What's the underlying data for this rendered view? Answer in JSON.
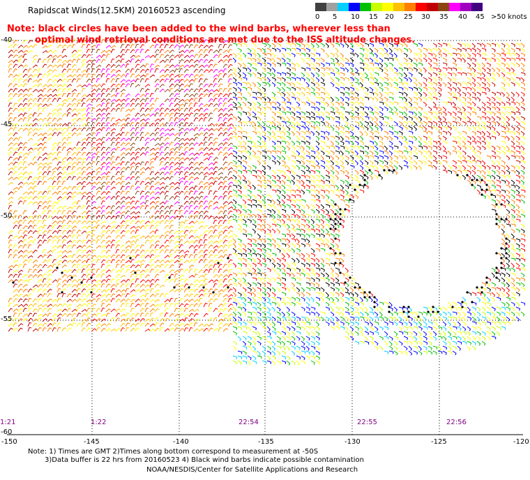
{
  "title": "Rapidscat Winds(12.5KM) 20160523 ascending",
  "note_lines": [
    "Note: black circles have been added to the wind barbs, wherever less than",
    "optimal wind retrieval conditions are met due to the ISS altitude changes."
  ],
  "legend": {
    "labels": [
      "0",
      "5",
      "10",
      "15",
      "20",
      "25",
      "30",
      "35",
      "40",
      "45",
      ">50 knots"
    ],
    "colors": [
      "#404040",
      "#a0a0a0",
      "#00d0ff",
      "#0000ff",
      "#00c000",
      "#c8ff00",
      "#ffff00",
      "#ffc000",
      "#ff8000",
      "#ff0000",
      "#c00000",
      "#8b4513",
      "#ff00ff",
      "#a000c0",
      "#400080"
    ]
  },
  "lat_labels": [
    "-40",
    "-45",
    "-50",
    "-55",
    "-60"
  ],
  "lon_labels": [
    "-150",
    "-145",
    "-140",
    "-135",
    "-130",
    "-125",
    "-120"
  ],
  "time_labels": [
    "1:21",
    "1:22",
    "22:54",
    "22:55",
    "22:56"
  ],
  "footer": {
    "line1": "Note: 1) Times are GMT 2)Times along bottom correspond to measurement at -50S",
    "line2": "3)Data buffer is 22 hrs from 20160523 4) Black wind barbs indicate possible contamination",
    "line3": "NOAA/NESDIS/Center for Satellite Applications and Research"
  }
}
